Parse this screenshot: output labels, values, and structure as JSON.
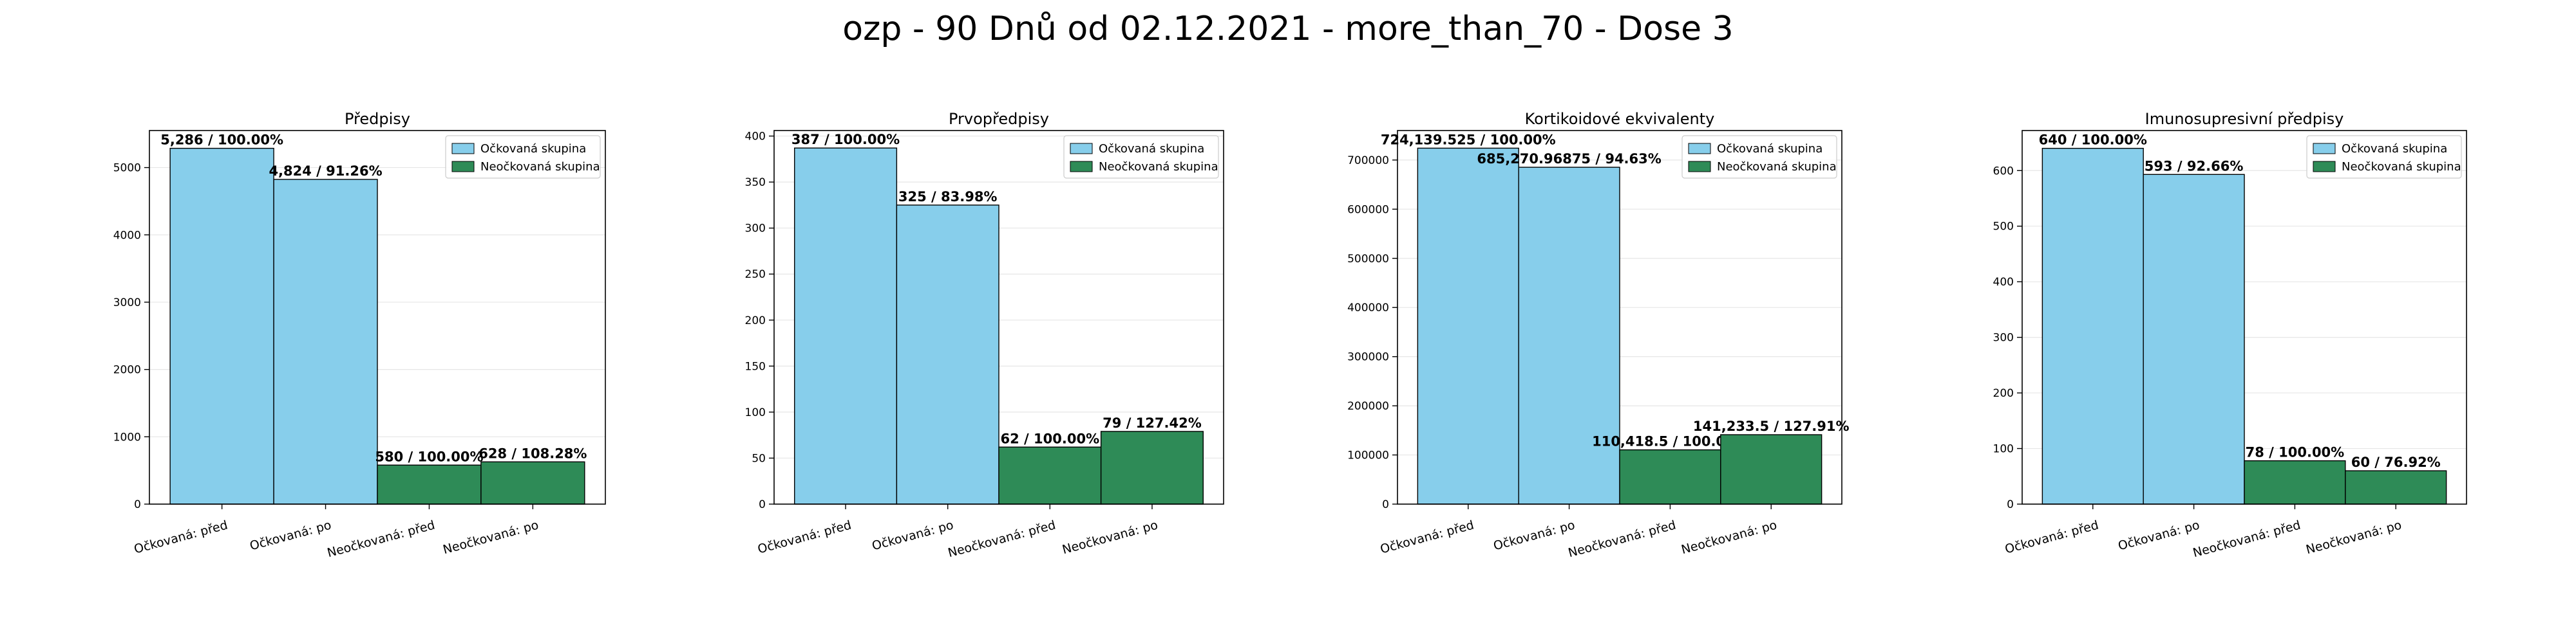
{
  "suptitle": "ozp - 90 Dnů od 02.12.2021 - more_than_70 - Dose 3",
  "colors": {
    "vaccinated": "#87ceeb",
    "unvaccinated": "#2e8b57",
    "edge": "#000000",
    "grid": "#e6e6e6"
  },
  "chart_data": [
    {
      "type": "bar",
      "title": "Předpisy",
      "categories": [
        "Očkovaná: před",
        "Očkovaná: po",
        "Neočkovaná: před",
        "Neočkovaná: po"
      ],
      "values": [
        5286,
        4824,
        580,
        628
      ],
      "labels": [
        "5,286 / 100.00%",
        "4,824 / 91.26%",
        "580 / 100.00%",
        "628 / 108.28%"
      ],
      "groups": [
        "vaccinated",
        "vaccinated",
        "unvaccinated",
        "unvaccinated"
      ],
      "ylim": [
        0,
        5550
      ],
      "yticks": [
        0,
        1000,
        2000,
        3000,
        4000,
        5000
      ],
      "legend": [
        "Očkovaná skupina",
        "Neočkovaná skupina"
      ],
      "legend_position": "top-right",
      "grid": true
    },
    {
      "type": "bar",
      "title": "Prvopředpisy",
      "categories": [
        "Očkovaná: před",
        "Očkovaná: po",
        "Neočkovaná: před",
        "Neočkovaná: po"
      ],
      "values": [
        387,
        325,
        62,
        79
      ],
      "labels": [
        "387 / 100.00%",
        "325 / 83.98%",
        "62 / 100.00%",
        "79 / 127.42%"
      ],
      "groups": [
        "vaccinated",
        "vaccinated",
        "unvaccinated",
        "unvaccinated"
      ],
      "ylim": [
        0,
        406
      ],
      "yticks": [
        0,
        50,
        100,
        150,
        200,
        250,
        300,
        350,
        400
      ],
      "legend": [
        "Očkovaná skupina",
        "Neočkovaná skupina"
      ],
      "legend_position": "top-right",
      "grid": true
    },
    {
      "type": "bar",
      "title": "Kortikoidové ekvivalenty",
      "categories": [
        "Očkovaná: před",
        "Očkovaná: po",
        "Neočkovaná: před",
        "Neočkovaná: po"
      ],
      "values": [
        724139.525,
        685270.96875,
        110418.5,
        141233.5
      ],
      "labels": [
        "724,139.525 / 100.00%",
        "685,270.96875 / 94.63%",
        "110,418.5 / 100.00%",
        "141,233.5 / 127.91%"
      ],
      "groups": [
        "vaccinated",
        "vaccinated",
        "unvaccinated",
        "unvaccinated"
      ],
      "ylim": [
        0,
        760000
      ],
      "yticks": [
        0,
        100000,
        200000,
        300000,
        400000,
        500000,
        600000,
        700000
      ],
      "legend": [
        "Očkovaná skupina",
        "Neočkovaná skupina"
      ],
      "legend_position": "top-right",
      "grid": true
    },
    {
      "type": "bar",
      "title": "Imunosupresivní předpisy",
      "categories": [
        "Očkovaná: před",
        "Očkovaná: po",
        "Neočkovaná: před",
        "Neočkovaná: po"
      ],
      "values": [
        640,
        593,
        78,
        60
      ],
      "labels": [
        "640 / 100.00%",
        "593 / 92.66%",
        "78 / 100.00%",
        "60 / 76.92%"
      ],
      "groups": [
        "vaccinated",
        "vaccinated",
        "unvaccinated",
        "unvaccinated"
      ],
      "ylim": [
        0,
        672
      ],
      "yticks": [
        0,
        100,
        200,
        300,
        400,
        500,
        600
      ],
      "legend": [
        "Očkovaná skupina",
        "Neočkovaná skupina"
      ],
      "legend_position": "top-right",
      "grid": true
    }
  ]
}
